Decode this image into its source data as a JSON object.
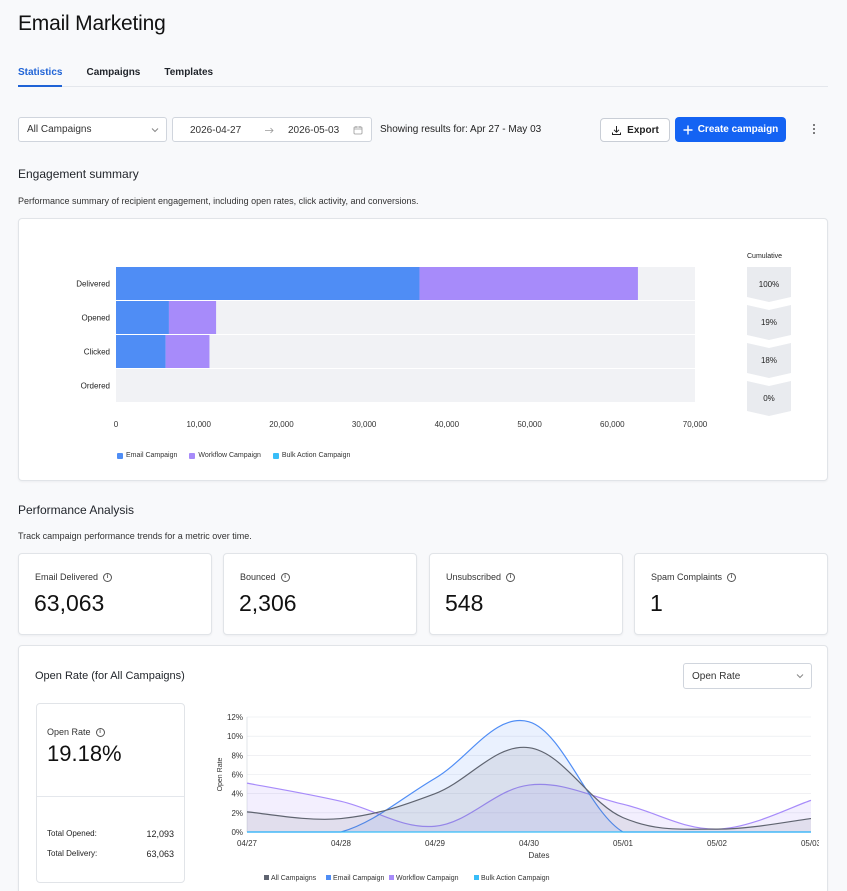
{
  "page": {
    "title": "Email Marketing"
  },
  "tabs": [
    {
      "label": "Statistics",
      "active": true
    },
    {
      "label": "Campaigns",
      "active": false
    },
    {
      "label": "Templates",
      "active": false
    }
  ],
  "toolbar": {
    "campaign_filter": "All Campaigns",
    "date_start": "2026-04-27",
    "date_end": "2026-05-03",
    "results_text": "Showing results for: Apr 27 - May 03",
    "export_label": "Export",
    "create_label": "Create campaign"
  },
  "engagement": {
    "title": "Engagement summary",
    "description": "Performance summary of recipient engagement, including open rates, click activity, and conversions.",
    "cumulative_title": "Cumulative",
    "cumulative": [
      "100%",
      "19%",
      "18%",
      "0%"
    ]
  },
  "performance": {
    "title": "Performance Analysis",
    "description": "Track campaign performance trends for a metric over time.",
    "stats": [
      {
        "label": "Email Delivered",
        "value": "63,063"
      },
      {
        "label": "Bounced",
        "value": "2,306"
      },
      {
        "label": "Unsubscribed",
        "value": "548"
      },
      {
        "label": "Spam Complaints",
        "value": "1"
      }
    ]
  },
  "open_rate": {
    "title": "Open Rate (for All Campaigns)",
    "metric_select": "Open Rate",
    "summary_label": "Open Rate",
    "summary_value": "19.18%",
    "total_opened_label": "Total Opened:",
    "total_opened": "12,093",
    "total_delivery_label": "Total Delivery:",
    "total_delivery": "63,063"
  },
  "colors": {
    "email": "#4f8df5",
    "workflow": "#a78bfa",
    "bulk": "#38bdf8",
    "all": "#5f6470",
    "accent": "#1463f3"
  },
  "chart_data": [
    {
      "type": "bar",
      "orientation": "horizontal",
      "stacked": true,
      "categories": [
        "Delivered",
        "Opened",
        "Clicked",
        "Ordered"
      ],
      "series": [
        {
          "name": "Email Campaign",
          "values": [
            36700,
            6400,
            6000,
            0
          ]
        },
        {
          "name": "Workflow Campaign",
          "values": [
            26400,
            5700,
            5300,
            0
          ]
        },
        {
          "name": "Bulk Action Campaign",
          "values": [
            0,
            0,
            0,
            0
          ]
        }
      ],
      "xlim": [
        0,
        70000
      ],
      "xticks": [
        "0",
        "10,000",
        "20,000",
        "30,000",
        "40,000",
        "50,000",
        "60,000",
        "70,000"
      ],
      "legend": "bottom-left"
    },
    {
      "type": "area",
      "x": [
        "04/27",
        "04/28",
        "04/29",
        "04/30",
        "05/01",
        "05/02",
        "05/03"
      ],
      "xlabel": "Dates",
      "ylabel": "Open Rate",
      "ylim": [
        0,
        12
      ],
      "yticks": [
        "0%",
        "2%",
        "4%",
        "6%",
        "8%",
        "10%",
        "12%"
      ],
      "series": [
        {
          "name": "All Campaigns",
          "values": [
            2.1,
            1.4,
            4.0,
            8.8,
            1.5,
            0.3,
            1.4
          ]
        },
        {
          "name": "Email Campaign",
          "values": [
            0,
            0,
            5.6,
            11.5,
            0,
            0,
            0
          ]
        },
        {
          "name": "Workflow Campaign",
          "values": [
            5.1,
            3.2,
            0.6,
            4.9,
            2.9,
            0.3,
            3.3
          ]
        },
        {
          "name": "Bulk Action Campaign",
          "values": [
            0,
            0,
            0,
            0,
            0,
            0,
            0
          ]
        }
      ],
      "legend": "bottom-center"
    }
  ]
}
